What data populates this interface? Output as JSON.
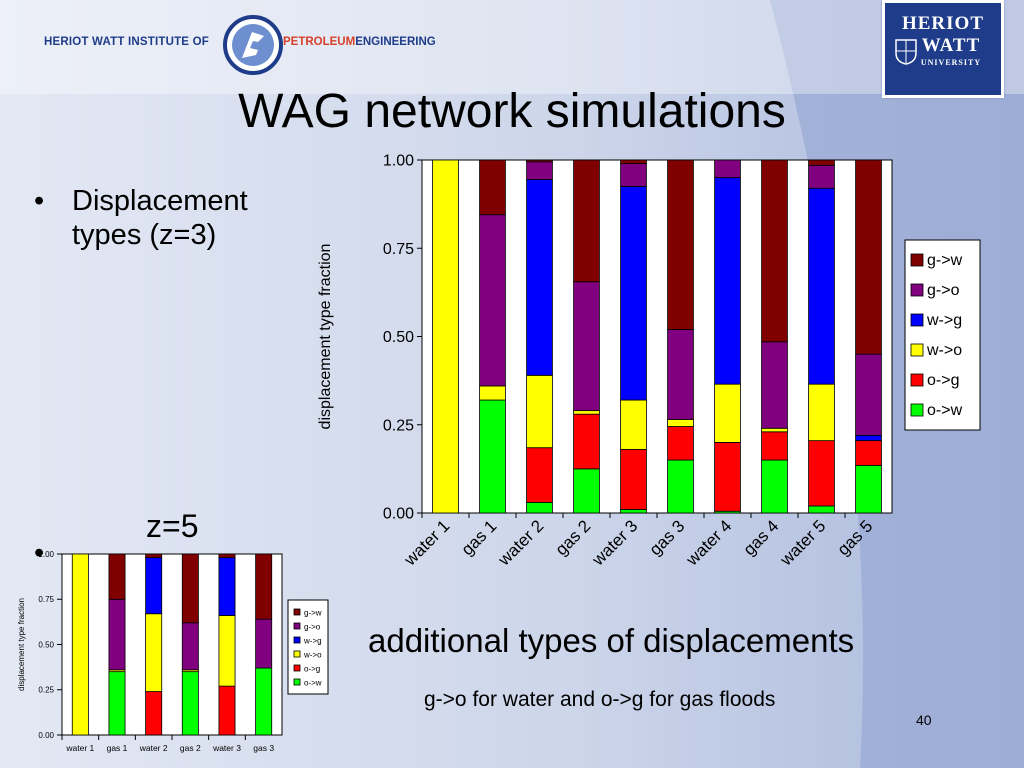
{
  "header": {
    "institute": "HERIOT WATT INSTITUTE OF",
    "petroleum": "PETROLEUM",
    "engineering": "ENGINEERING",
    "university_logo": {
      "line1": "HERIOT",
      "line2": "WATT",
      "line3": "UNIVERSITY"
    }
  },
  "title": "WAG network simulations",
  "bullets": {
    "item1": "Displacement types (z=3)",
    "bullet_symbol": "•"
  },
  "z5_label": "z=5",
  "additional_text": "additional types of displacements",
  "note_text": "g->o for water and o->g for gas floods",
  "page_number": "40",
  "colors": {
    "g->w": "#800000",
    "g->o": "#800080",
    "w->g": "#0000ff",
    "w->o": "#ffff00",
    "o->g": "#ff0000",
    "o->w": "#00ff00",
    "background": "#c9d3e9",
    "title_text": "#000000"
  },
  "chart_data": [
    {
      "type": "bar",
      "stacked": true,
      "ylabel": "displacement type fraction",
      "xlabel": "",
      "ylim": [
        0,
        1
      ],
      "yticks": [
        "0.00",
        "0.25",
        "0.50",
        "0.75",
        "1.00"
      ],
      "categories": [
        "water 1",
        "gas 1",
        "water 2",
        "gas 2",
        "water 3",
        "gas 3",
        "water 4",
        "gas 4",
        "water 5",
        "gas 5"
      ],
      "legend_position": "right",
      "series": [
        {
          "name": "o->w",
          "values": [
            0.0,
            0.32,
            0.03,
            0.125,
            0.01,
            0.15,
            0.005,
            0.15,
            0.02,
            0.135
          ]
        },
        {
          "name": "o->g",
          "values": [
            0.0,
            0.0,
            0.155,
            0.155,
            0.17,
            0.095,
            0.195,
            0.08,
            0.185,
            0.07
          ]
        },
        {
          "name": "w->o",
          "values": [
            1.0,
            0.04,
            0.205,
            0.01,
            0.14,
            0.02,
            0.165,
            0.01,
            0.16,
            0.0
          ]
        },
        {
          "name": "w->g",
          "values": [
            0.0,
            0.0,
            0.555,
            0.0,
            0.605,
            0.0,
            0.585,
            0.0,
            0.555,
            0.015
          ]
        },
        {
          "name": "g->o",
          "values": [
            0.0,
            0.485,
            0.05,
            0.365,
            0.065,
            0.255,
            0.05,
            0.245,
            0.065,
            0.23
          ]
        },
        {
          "name": "g->w",
          "values": [
            0.0,
            0.155,
            0.005,
            0.345,
            0.01,
            0.48,
            0.0,
            0.515,
            0.015,
            0.55
          ]
        }
      ]
    },
    {
      "type": "bar",
      "stacked": true,
      "ylabel": "displacement type fraction",
      "xlabel": "",
      "ylim": [
        0,
        1
      ],
      "yticks": [
        "0.00",
        "0.25",
        "0.50",
        "0.75",
        "1.00"
      ],
      "categories": [
        "water 1",
        "gas 1",
        "water 2",
        "gas 2",
        "water 3",
        "gas 3"
      ],
      "legend_position": "right",
      "series": [
        {
          "name": "o->w",
          "values": [
            0.0,
            0.35,
            0.0,
            0.35,
            0.0,
            0.37
          ]
        },
        {
          "name": "o->g",
          "values": [
            0.0,
            0.0,
            0.24,
            0.0,
            0.27,
            0.0
          ]
        },
        {
          "name": "w->o",
          "values": [
            1.0,
            0.01,
            0.43,
            0.01,
            0.39,
            0.0
          ]
        },
        {
          "name": "w->g",
          "values": [
            0.0,
            0.0,
            0.31,
            0.0,
            0.32,
            0.0
          ]
        },
        {
          "name": "g->o",
          "values": [
            0.0,
            0.39,
            0.0,
            0.26,
            0.0,
            0.27
          ]
        },
        {
          "name": "g->w",
          "values": [
            0.0,
            0.25,
            0.02,
            0.38,
            0.02,
            0.36
          ]
        }
      ]
    }
  ]
}
